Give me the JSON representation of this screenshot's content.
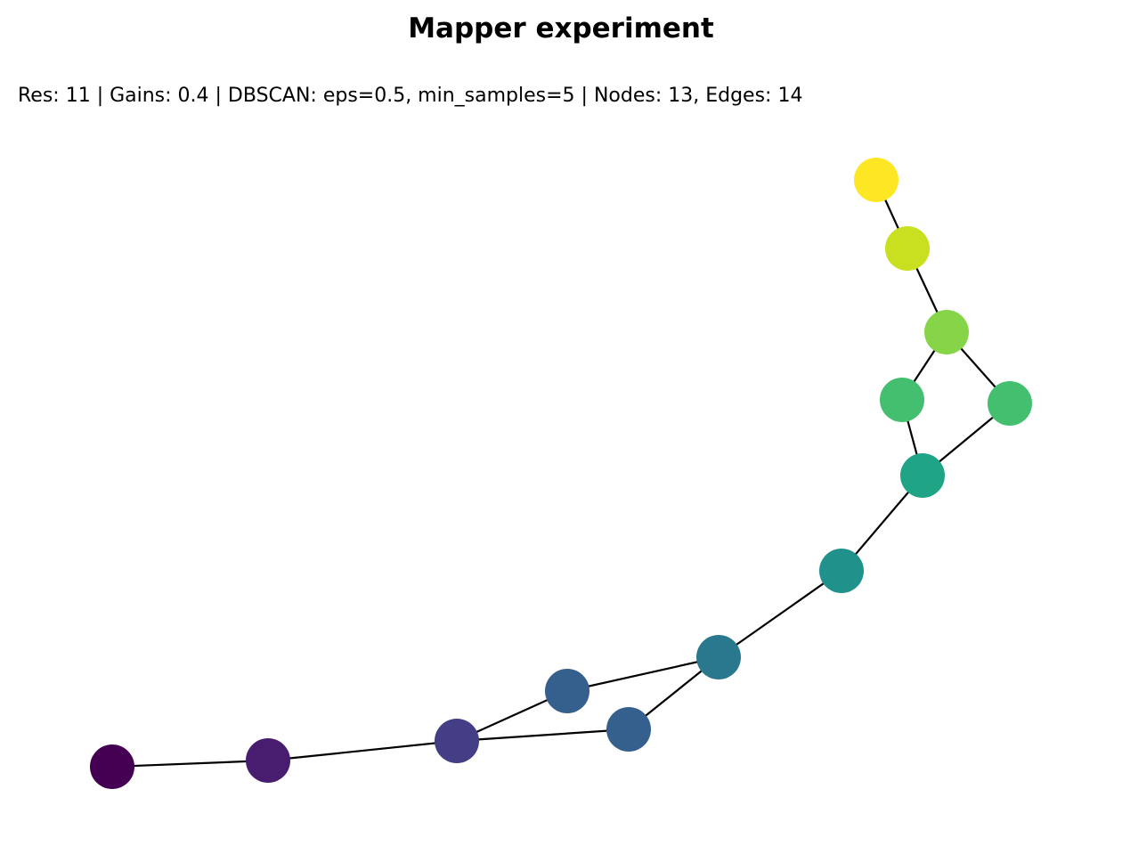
{
  "header": {
    "title": "Mapper experiment",
    "subtitle": "Res: 11 | Gains: 0.4 | DBSCAN: eps=0.5, min_samples=5 | Nodes: 13, Edges: 14"
  },
  "graph": {
    "edge_color": "#000000",
    "node_colors": [
      "#440154",
      "#481d6f",
      "#433e85",
      "#355f8d",
      "#355f8d",
      "#2a788e",
      "#21918c",
      "#20a486",
      "#44bf70",
      "#44bf70",
      "#86d549",
      "#c8e020",
      "#fde725"
    ],
    "edges": [
      [
        0,
        1
      ],
      [
        1,
        2
      ],
      [
        2,
        3
      ],
      [
        2,
        4
      ],
      [
        3,
        5
      ],
      [
        4,
        5
      ],
      [
        5,
        6
      ],
      [
        6,
        7
      ],
      [
        7,
        8
      ],
      [
        7,
        9
      ],
      [
        8,
        10
      ],
      [
        9,
        10
      ],
      [
        10,
        11
      ],
      [
        11,
        12
      ]
    ]
  }
}
